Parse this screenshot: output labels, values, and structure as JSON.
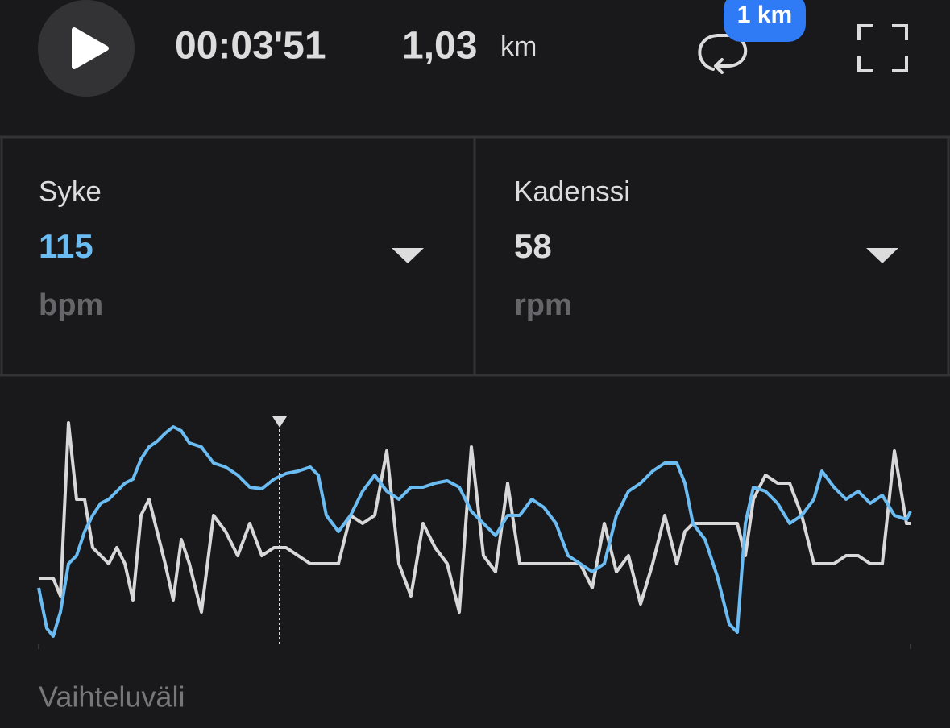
{
  "header": {
    "time": "00:03'51",
    "distance": "1,03",
    "distance_unit": "km",
    "lap_badge": "1 km"
  },
  "metrics": [
    {
      "label": "Syke",
      "value": 115,
      "unit": "bpm"
    },
    {
      "label": "Kadenssi",
      "value": 58,
      "unit": "rpm"
    }
  ],
  "chart_data": {
    "type": "line",
    "x": [
      48,
      58,
      66,
      75,
      85,
      95,
      105,
      115,
      125,
      135,
      145,
      155,
      165,
      175,
      185,
      195,
      205,
      215,
      225,
      235,
      250,
      265,
      280,
      295,
      310,
      325,
      340,
      355,
      370,
      385,
      395,
      405,
      420,
      435,
      450,
      465,
      480,
      495,
      510,
      525,
      540,
      555,
      570,
      585,
      600,
      615,
      630,
      645,
      660,
      675,
      690,
      705,
      720,
      735,
      750,
      765,
      780,
      795,
      810,
      825,
      840,
      850,
      860,
      875,
      890,
      905,
      915,
      925,
      935,
      950,
      965,
      980,
      995,
      1010,
      1020,
      1035,
      1050,
      1065,
      1080,
      1095,
      1110,
      1125,
      1130
    ],
    "xlim": [
      48,
      1130
    ],
    "ylim": [
      0,
      275
    ],
    "cursor_x": 347,
    "series": [
      {
        "color": "#6bbcf2",
        "values": [
          70,
          20,
          10,
          40,
          100,
          110,
          140,
          160,
          175,
          180,
          190,
          200,
          205,
          230,
          245,
          252,
          262,
          270,
          265,
          250,
          245,
          225,
          220,
          210,
          195,
          193,
          205,
          212,
          215,
          220,
          210,
          160,
          140,
          160,
          190,
          210,
          190,
          180,
          195,
          195,
          200,
          203,
          195,
          165,
          150,
          135,
          160,
          160,
          180,
          170,
          150,
          110,
          100,
          90,
          100,
          160,
          190,
          200,
          215,
          225,
          225,
          200,
          150,
          130,
          85,
          25,
          15,
          150,
          195,
          190,
          175,
          150,
          160,
          180,
          215,
          195,
          180,
          190,
          175,
          185,
          160,
          155,
          165
        ]
      },
      {
        "color": "#d8d8d8",
        "values": [
          82,
          82,
          82,
          60,
          275,
          180,
          180,
          120,
          110,
          100,
          120,
          100,
          55,
          160,
          180,
          140,
          100,
          55,
          130,
          100,
          40,
          160,
          140,
          110,
          150,
          110,
          120,
          120,
          110,
          100,
          100,
          100,
          100,
          160,
          150,
          160,
          240,
          100,
          60,
          150,
          120,
          100,
          40,
          245,
          110,
          90,
          200,
          100,
          100,
          100,
          100,
          100,
          100,
          70,
          150,
          90,
          110,
          50,
          100,
          160,
          100,
          140,
          150,
          150,
          150,
          150,
          150,
          110,
          180,
          210,
          200,
          200,
          160,
          100,
          100,
          100,
          110,
          110,
          100,
          100,
          240,
          150,
          150
        ]
      }
    ]
  },
  "footer": {
    "label": "Vaihteluväli"
  }
}
